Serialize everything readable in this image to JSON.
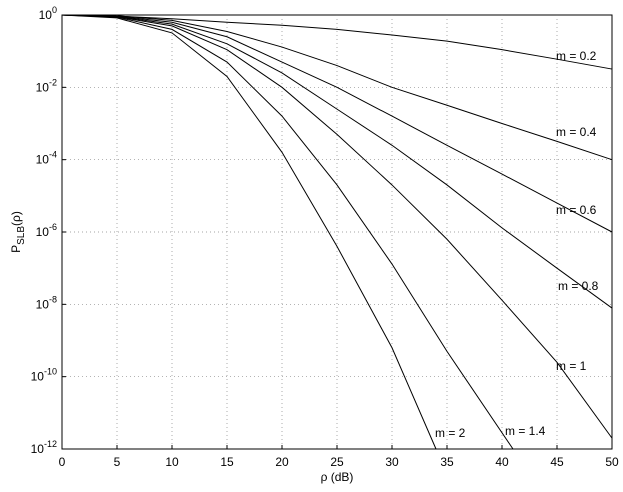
{
  "chart_data": {
    "type": "line",
    "xlabel": "ρ (dB)",
    "ylabel": [
      "P",
      "SLB",
      "(ρ)"
    ],
    "xlim": [
      0,
      50
    ],
    "xticks": [
      0,
      5,
      10,
      15,
      20,
      25,
      30,
      35,
      40,
      45,
      50
    ],
    "ylim": [
      1e-12,
      1
    ],
    "log_y": true,
    "grid": true,
    "yticks": [
      {
        "value": 1,
        "label": "10^0"
      },
      {
        "value": 0.01,
        "label": "10^-2"
      },
      {
        "value": 0.0001,
        "label": "10^-4"
      },
      {
        "value": 1e-06,
        "label": "10^-6"
      },
      {
        "value": 1e-08,
        "label": "10^-8"
      },
      {
        "value": 1e-10,
        "label": "10^-10"
      },
      {
        "value": 1e-12,
        "label": "10^-12"
      }
    ],
    "series": [
      {
        "name": "m = 0.2",
        "color": "#000000",
        "x": [
          0,
          5,
          10,
          15,
          20,
          25,
          30,
          35,
          40,
          45,
          50
        ],
        "values": [
          1,
          0.93,
          0.79,
          0.63,
          0.52,
          0.4,
          0.28,
          0.19,
          0.11,
          0.06,
          0.032
        ]
      },
      {
        "name": "m = 0.4",
        "color": "#000000",
        "x": [
          0,
          5,
          10,
          15,
          20,
          25,
          30,
          35,
          40,
          45,
          50
        ],
        "values": [
          1,
          0.95,
          0.71,
          0.35,
          0.13,
          0.04,
          0.01,
          0.0032,
          0.001,
          0.00032,
          0.0001
        ]
      },
      {
        "name": "m = 0.6",
        "color": "#000000",
        "x": [
          0,
          5,
          10,
          15,
          20,
          25,
          30,
          35,
          40,
          45,
          50
        ],
        "values": [
          1,
          0.93,
          0.63,
          0.25,
          0.05,
          0.01,
          0.0016,
          0.00025,
          4e-05,
          6.3e-06,
          1e-06
        ]
      },
      {
        "name": "m = 0.8",
        "color": "#000000",
        "x": [
          0,
          5,
          10,
          15,
          20,
          25,
          30,
          35,
          40,
          45,
          50
        ],
        "values": [
          1,
          0.91,
          0.56,
          0.16,
          0.025,
          0.0025,
          0.00025,
          2e-05,
          1.3e-06,
          1e-07,
          7.9e-09
        ]
      },
      {
        "name": "m = 1",
        "color": "#000000",
        "x": [
          0,
          5,
          10,
          15,
          20,
          25,
          30,
          35,
          40,
          45,
          50
        ],
        "values": [
          1,
          0.89,
          0.5,
          0.11,
          0.01,
          0.0005,
          2e-05,
          6.3e-07,
          1.3e-08,
          2.5e-10,
          2e-12
        ]
      },
      {
        "name": "m = 1.4",
        "color": "#000000",
        "x": [
          0,
          5,
          10,
          15,
          20,
          25,
          30,
          35,
          41
        ],
        "values": [
          1,
          0.87,
          0.4,
          0.05,
          0.0016,
          2e-05,
          1.3e-07,
          5e-10,
          1e-12
        ]
      },
      {
        "name": "m = 2",
        "color": "#000000",
        "x": [
          0,
          5,
          10,
          15,
          20,
          25,
          30,
          34
        ],
        "values": [
          1,
          0.83,
          0.32,
          0.02,
          0.00016,
          4e-07,
          6.3e-10,
          1e-12
        ]
      }
    ]
  }
}
